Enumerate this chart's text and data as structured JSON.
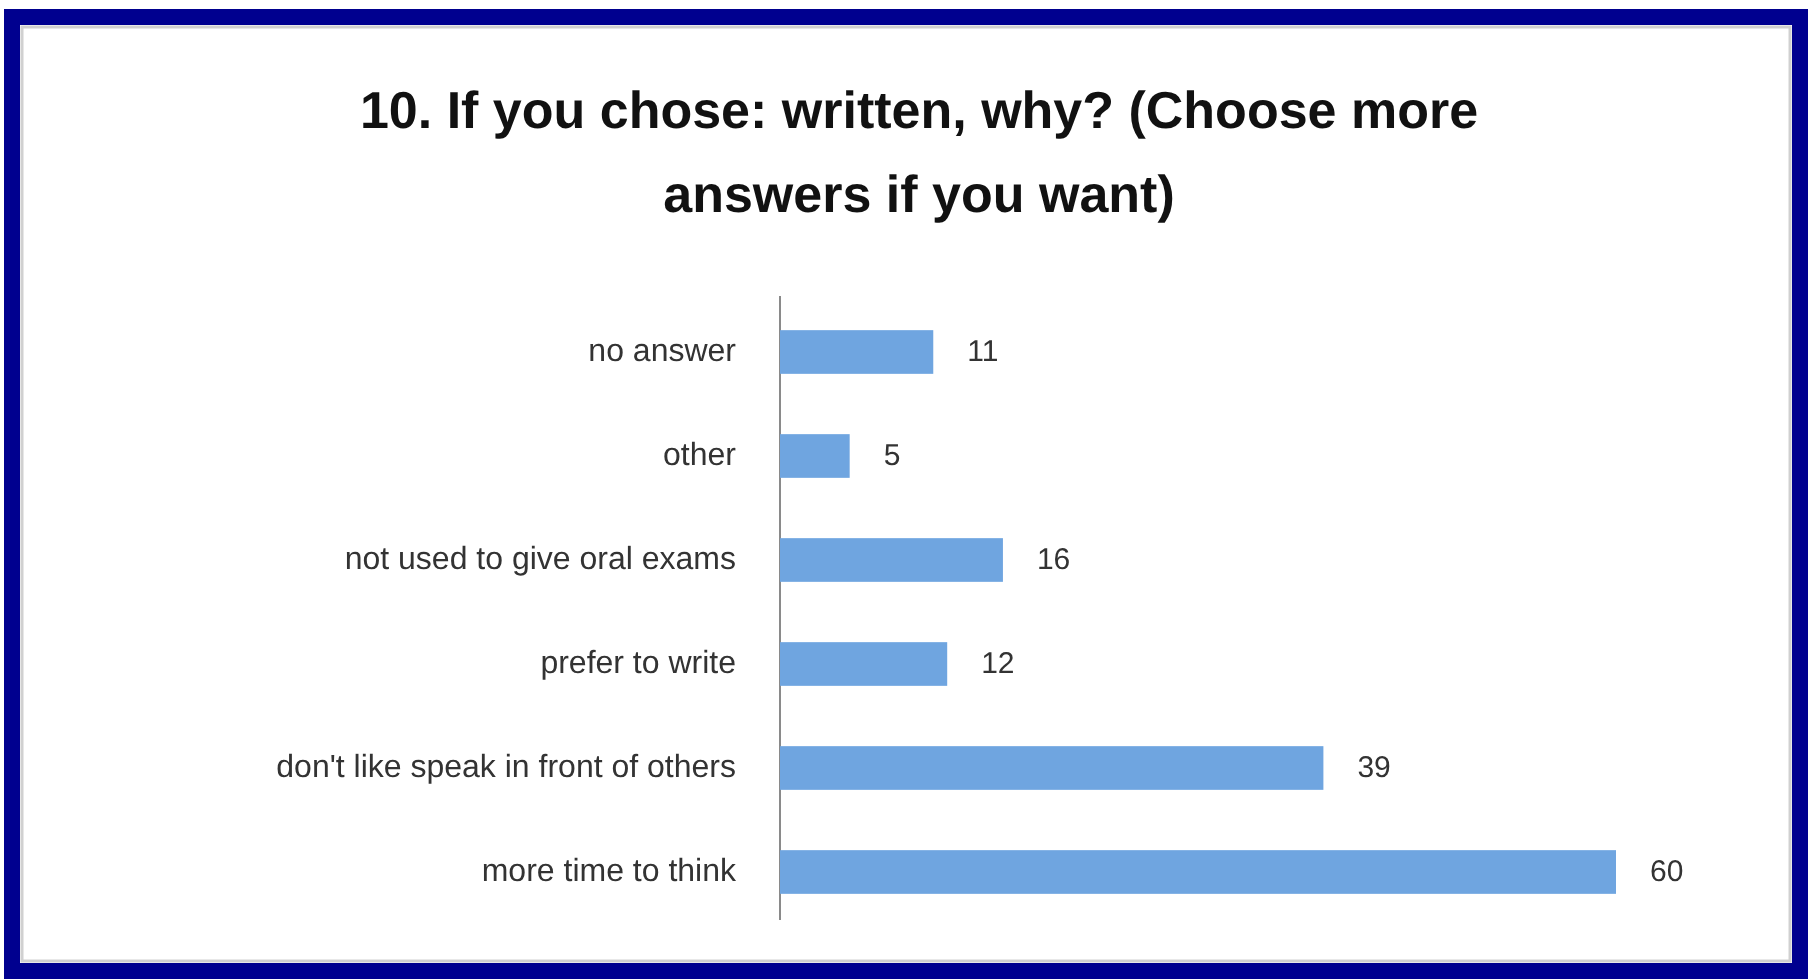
{
  "chart_data": {
    "type": "bar",
    "orientation": "horizontal",
    "title": "10. If you chose: written, why? (Choose more answers if you want)",
    "categories": [
      "no answer",
      "other",
      "not used to give oral exams",
      "prefer to write",
      "don't like speak in front of others",
      "more time to think"
    ],
    "values": [
      11,
      5,
      16,
      12,
      39,
      60
    ],
    "color": "#6fa5e0",
    "data_labels": true
  }
}
